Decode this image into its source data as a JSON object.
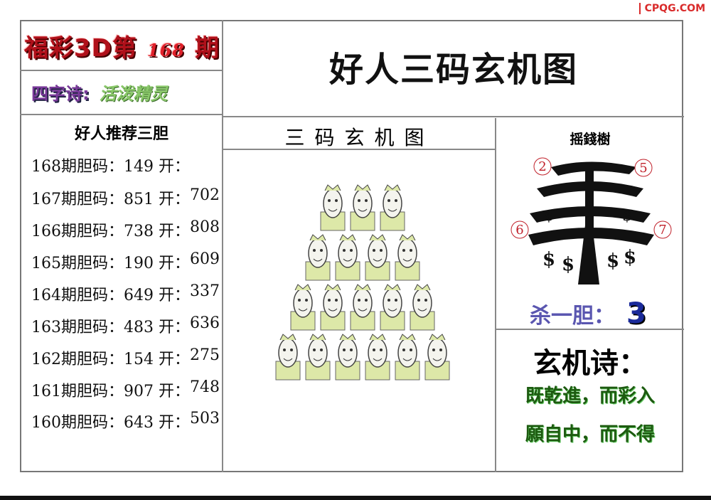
{
  "watermark": "CPQG.COM",
  "header": {
    "prefix": "福彩3D第",
    "issue": "168",
    "suffix": "期",
    "poem_label": "四字诗:",
    "poem_value": "活泼精灵"
  },
  "title": "好人三码玄机图",
  "left": {
    "title": "好人推荐三胆",
    "rows": [
      {
        "label": "168期胆码：149 开：",
        "result": ""
      },
      {
        "label": "167期胆码：851 开：",
        "result": "702"
      },
      {
        "label": "166期胆码：738 开：",
        "result": "808"
      },
      {
        "label": "165期胆码：190 开：",
        "result": "609"
      },
      {
        "label": "164期胆码：649 开：",
        "result": "337"
      },
      {
        "label": "163期胆码：483 开：",
        "result": "636"
      },
      {
        "label": "162期胆码：154 开：",
        "result": "275"
      },
      {
        "label": "161期胆码：907 开：",
        "result": "748"
      },
      {
        "label": "160期胆码：643 开：",
        "result": "503"
      }
    ]
  },
  "middle": {
    "title": "三码玄机图",
    "pyramid_rows": [
      3,
      4,
      5,
      6
    ]
  },
  "tree": {
    "title": "摇錢樹",
    "numbers": [
      "2",
      "5",
      "6",
      "7"
    ],
    "kill_label": "杀一胆：",
    "kill_value": "3"
  },
  "poem": {
    "title": "玄机诗：",
    "lines": [
      "既乾進，而彩入",
      "願自中，而不得"
    ]
  }
}
